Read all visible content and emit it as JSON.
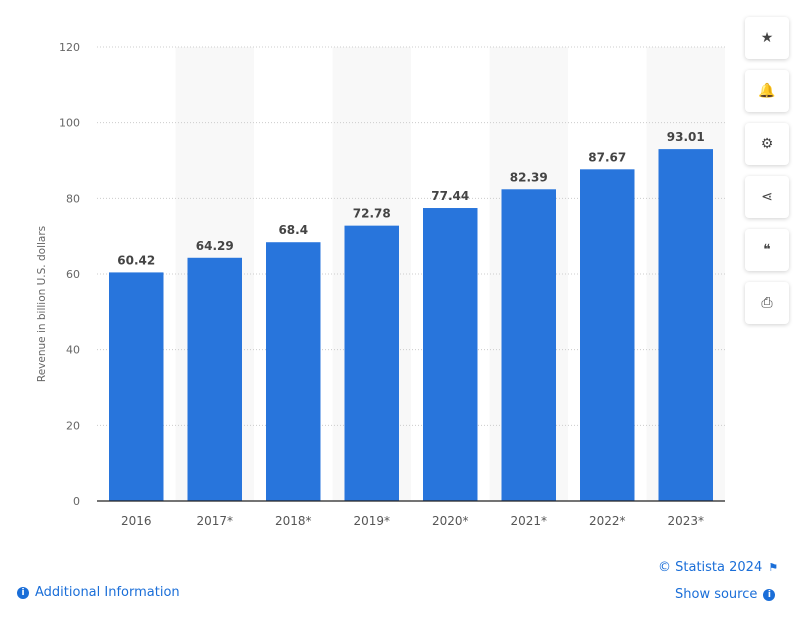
{
  "chart_data": {
    "type": "bar",
    "categories": [
      "2016",
      "2017*",
      "2018*",
      "2019*",
      "2020*",
      "2021*",
      "2022*",
      "2023*"
    ],
    "values": [
      60.42,
      64.29,
      68.4,
      72.78,
      77.44,
      82.39,
      87.67,
      93.01
    ],
    "value_labels": [
      "60.42",
      "64.29",
      "68.4",
      "72.78",
      "77.44",
      "82.39",
      "87.67",
      "93.01"
    ],
    "ylabel": "Revenue in billion U.S. dollars",
    "xlabel": "",
    "ylim": [
      0,
      120
    ],
    "yticks": [
      0,
      20,
      40,
      60,
      80,
      100,
      120
    ],
    "grid": true,
    "bar_color": "#2875dc"
  },
  "sidebar": {
    "buttons": [
      {
        "name": "favorite-button",
        "icon": "star-icon",
        "glyph": "★"
      },
      {
        "name": "notification-button",
        "icon": "bell-icon",
        "glyph": "🔔"
      },
      {
        "name": "settings-button",
        "icon": "gear-icon",
        "glyph": "⚙"
      },
      {
        "name": "share-button",
        "icon": "share-icon",
        "glyph": "⋖"
      },
      {
        "name": "cite-button",
        "icon": "quote-icon",
        "glyph": "❝"
      },
      {
        "name": "print-button",
        "icon": "printer-icon",
        "glyph": "⎙"
      }
    ]
  },
  "footer": {
    "additional_info": "Additional Information",
    "copyright": "© Statista 2024",
    "show_source": "Show source"
  }
}
